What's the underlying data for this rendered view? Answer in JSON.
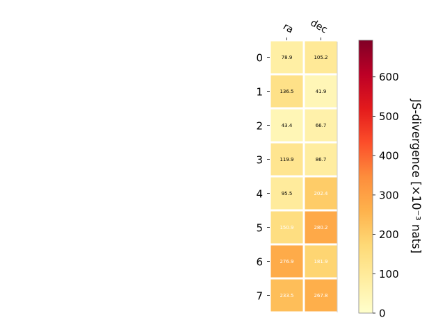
{
  "chart_data": {
    "type": "heatmap",
    "x_categories": [
      "ra",
      "dec"
    ],
    "y_categories": [
      "0",
      "1",
      "2",
      "3",
      "4",
      "5",
      "6",
      "7"
    ],
    "values": [
      [
        78.9,
        105.2
      ],
      [
        136.5,
        41.9
      ],
      [
        43.4,
        66.7
      ],
      [
        119.9,
        86.7
      ],
      [
        95.5,
        202.4
      ],
      [
        150.9,
        280.2
      ],
      [
        276.9,
        181.9
      ],
      [
        233.5,
        267.8
      ]
    ],
    "value_labels": [
      [
        "78.9",
        "105.2"
      ],
      [
        "136.5",
        "41.9"
      ],
      [
        "43.4",
        "66.7"
      ],
      [
        "119.9",
        "86.7"
      ],
      [
        "95.5",
        "202.4"
      ],
      [
        "150.9",
        "280.2"
      ],
      [
        "276.9",
        "181.9"
      ],
      [
        "233.5",
        "267.8"
      ]
    ],
    "colorbar": {
      "label": "JS-divergence [×10⁻³ nats]",
      "range": [
        0,
        693
      ],
      "ticks": [
        0,
        100,
        200,
        300,
        400,
        500,
        600
      ],
      "tick_labels": [
        "0",
        "100",
        "200",
        "300",
        "400",
        "500",
        "600"
      ],
      "colormap": "YlOrRd"
    },
    "label_threshold": 150
  }
}
